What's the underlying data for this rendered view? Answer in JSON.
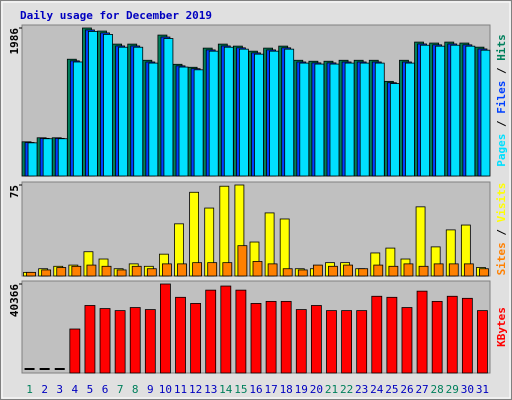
{
  "chart_data": [
    {
      "type": "bar",
      "title": "Daily usage for December 2019",
      "title_color": "#0000c0",
      "legend_separator": " / ",
      "series": [
        {
          "name": "Hits",
          "color": "#00805c",
          "values": [
            459,
            513,
            513,
            1567,
            1986,
            1945,
            1770,
            1770,
            1553,
            1891,
            1499,
            1459,
            1716,
            1770,
            1743,
            1675,
            1716,
            1743,
            1553,
            1540,
            1540,
            1553,
            1553,
            1553,
            1270,
            1553,
            1797,
            1784,
            1797,
            1784,
            1729
          ]
        },
        {
          "name": "Files",
          "color": "#0040ff",
          "values": [
            450,
            505,
            505,
            1545,
            1960,
            1920,
            1745,
            1745,
            1530,
            1865,
            1478,
            1440,
            1692,
            1745,
            1720,
            1652,
            1692,
            1720,
            1530,
            1518,
            1518,
            1530,
            1530,
            1530,
            1252,
            1530,
            1772,
            1760,
            1772,
            1760,
            1705
          ]
        },
        {
          "name": "Pages",
          "color": "#00e0ff",
          "values": [
            445,
            500,
            500,
            1530,
            1940,
            1900,
            1728,
            1728,
            1515,
            1845,
            1462,
            1425,
            1675,
            1728,
            1702,
            1635,
            1675,
            1702,
            1515,
            1502,
            1502,
            1515,
            1515,
            1515,
            1240,
            1515,
            1755,
            1742,
            1755,
            1742,
            1688
          ]
        }
      ],
      "ylim": [
        0,
        1986
      ],
      "yticks": [
        1986
      ]
    },
    {
      "type": "bar",
      "series": [
        {
          "name": "Visits",
          "color": "#ffff00",
          "values": [
            3,
            6,
            8,
            9,
            20,
            14,
            6,
            10,
            8,
            18,
            43,
            69,
            56,
            74,
            75,
            28,
            52,
            47,
            6,
            6,
            11,
            11,
            6,
            19,
            23,
            14,
            57,
            24,
            38,
            42,
            7
          ]
        },
        {
          "name": "Sites",
          "color": "#ff8000",
          "values": [
            3,
            5,
            7,
            8,
            9,
            8,
            5,
            8,
            6,
            10,
            10,
            11,
            11,
            11,
            25,
            12,
            10,
            6,
            5,
            9,
            8,
            9,
            6,
            9,
            8,
            10,
            8,
            10,
            10,
            10,
            6
          ]
        }
      ],
      "ylim": [
        0,
        75
      ],
      "yticks": [
        75
      ]
    },
    {
      "type": "bar",
      "categories": [
        "1",
        "2",
        "3",
        "4",
        "5",
        "6",
        "7",
        "8",
        "9",
        "10",
        "11",
        "12",
        "13",
        "14",
        "15",
        "16",
        "17",
        "18",
        "19",
        "20",
        "21",
        "22",
        "23",
        "24",
        "25",
        "26",
        "27",
        "28",
        "29",
        "30",
        "31"
      ],
      "category_colors": [
        "#00805c",
        "#0000c0",
        "#0000c0",
        "#0000c0",
        "#0000c0",
        "#0000c0",
        "#00805c",
        "#00805c",
        "#0000c0",
        "#0000c0",
        "#0000c0",
        "#0000c0",
        "#0000c0",
        "#00805c",
        "#00805c",
        "#0000c0",
        "#0000c0",
        "#0000c0",
        "#0000c0",
        "#0000c0",
        "#00805c",
        "#00805c",
        "#0000c0",
        "#0000c0",
        "#0000c0",
        "#0000c0",
        "#0000c0",
        "#00805c",
        "#00805c",
        "#0000c0",
        "#0000c0"
      ],
      "series": [
        {
          "name": "KBytes",
          "color": "#ff0000",
          "values": [
            0,
            0,
            0,
            19950,
            30620,
            29230,
            28300,
            29690,
            28770,
            40366,
            34330,
            31550,
            37580,
            39440,
            37580,
            31550,
            32480,
            32480,
            28770,
            30620,
            28300,
            28300,
            28300,
            34800,
            34330,
            29690,
            37120,
            32480,
            34800,
            33870,
            28300
          ]
        }
      ],
      "ylim": [
        0,
        40366
      ],
      "yticks": [
        40366
      ]
    }
  ]
}
